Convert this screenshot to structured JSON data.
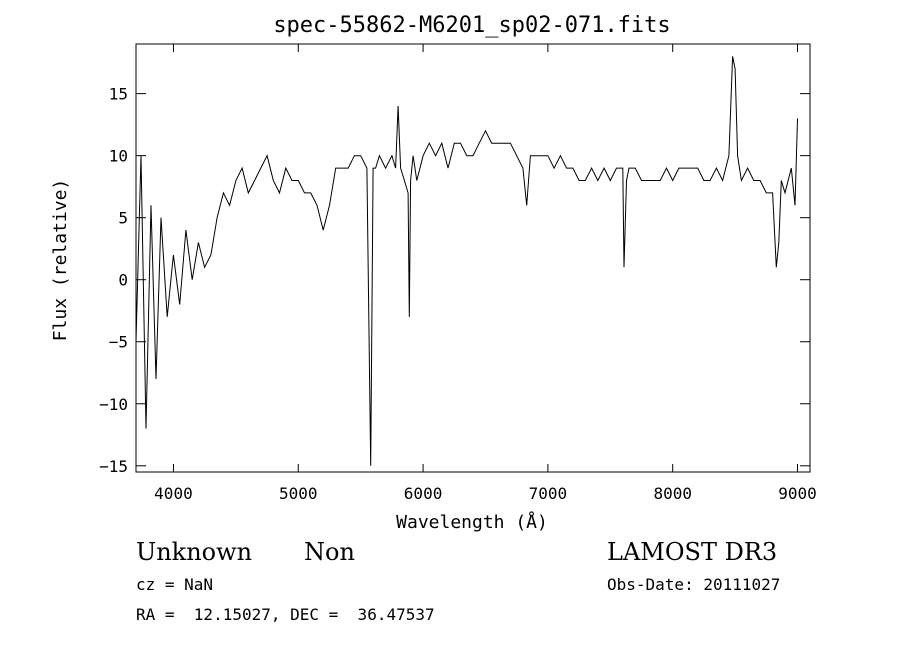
{
  "chart_data": {
    "type": "line",
    "title": "spec-55862-M6201_sp02-071.fits",
    "xlabel": "Wavelength (Å)",
    "ylabel": "Flux (relative)",
    "xlim": [
      3700,
      9100
    ],
    "ylim": [
      -15.5,
      19
    ],
    "x_ticks": [
      4000,
      5000,
      6000,
      7000,
      8000,
      9000
    ],
    "x_tick_labels": [
      "4000",
      "5000",
      "6000",
      "7000",
      "8000",
      "9000"
    ],
    "y_ticks": [
      -15,
      -10,
      -5,
      0,
      5,
      10,
      15
    ],
    "y_tick_labels": [
      "−15",
      "−10",
      "−5",
      "0",
      "5",
      "10",
      "15"
    ],
    "series": [
      {
        "name": "flux",
        "x": [
          3700,
          3740,
          3780,
          3820,
          3860,
          3900,
          3950,
          4000,
          4050,
          4100,
          4150,
          4200,
          4250,
          4300,
          4350,
          4400,
          4450,
          4500,
          4550,
          4600,
          4650,
          4700,
          4750,
          4800,
          4850,
          4900,
          4950,
          5000,
          5050,
          5100,
          5150,
          5200,
          5250,
          5300,
          5350,
          5400,
          5450,
          5500,
          5550,
          5580,
          5600,
          5620,
          5650,
          5700,
          5750,
          5780,
          5800,
          5820,
          5850,
          5880,
          5890,
          5900,
          5920,
          5950,
          6000,
          6050,
          6100,
          6150,
          6200,
          6250,
          6300,
          6350,
          6400,
          6450,
          6500,
          6550,
          6600,
          6650,
          6700,
          6750,
          6800,
          6830,
          6860,
          6900,
          6950,
          7000,
          7050,
          7100,
          7150,
          7200,
          7250,
          7300,
          7350,
          7400,
          7450,
          7500,
          7550,
          7600,
          7610,
          7630,
          7650,
          7700,
          7750,
          7800,
          7850,
          7900,
          7950,
          8000,
          8050,
          8100,
          8150,
          8200,
          8250,
          8300,
          8350,
          8400,
          8450,
          8480,
          8500,
          8520,
          8550,
          8600,
          8650,
          8700,
          8750,
          8800,
          8830,
          8850,
          8870,
          8900,
          8950,
          8980,
          9000
        ],
        "values": [
          -5,
          10,
          -12,
          6,
          -8,
          5,
          -3,
          2,
          -2,
          4,
          0,
          3,
          1,
          2,
          5,
          7,
          6,
          8,
          9,
          7,
          8,
          9,
          10,
          8,
          7,
          9,
          8,
          8,
          7,
          7,
          6,
          4,
          6,
          9,
          9,
          9,
          10,
          10,
          9,
          -15,
          9,
          9,
          10,
          9,
          10,
          9,
          14,
          9,
          8,
          7,
          -3,
          8,
          10,
          8,
          10,
          11,
          10,
          11,
          9,
          11,
          11,
          10,
          10,
          11,
          12,
          11,
          11,
          11,
          11,
          10,
          9,
          6,
          10,
          10,
          10,
          10,
          9,
          10,
          9,
          9,
          8,
          8,
          9,
          8,
          9,
          8,
          9,
          9,
          1,
          8,
          9,
          9,
          8,
          8,
          8,
          8,
          9,
          8,
          9,
          9,
          9,
          9,
          8,
          8,
          9,
          8,
          10,
          18,
          17,
          10,
          8,
          9,
          8,
          8,
          7,
          7,
          1,
          3,
          8,
          7,
          9,
          6,
          13
        ]
      }
    ],
    "annotations": {
      "object": "Unknown",
      "class": "Non",
      "survey": "LAMOST DR3",
      "cz": "cz = NaN",
      "obs_date": "Obs-Date: 20111027",
      "coords": "RA =  12.15027, DEC =  36.47537"
    }
  }
}
